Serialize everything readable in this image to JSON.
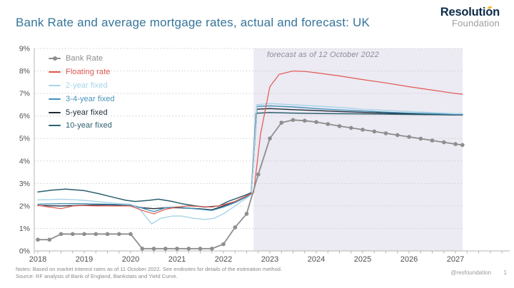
{
  "header": {
    "title": "Bank Rate and average mortgage rates, actual and forecast: UK"
  },
  "logo": {
    "line1": "Resolution",
    "line2": "Foundation"
  },
  "footer": {
    "notes": "Notes: Based on market interest rates as of 11 October 2022. See endnotes for details of the estimation method.",
    "source": "Source: RF analysis of Bank of England, Bankstats and Yield Curve.",
    "handle": "@resfoundation",
    "page": "1"
  },
  "colors": {
    "title": "#35759a",
    "forecast_band": "#eceaf3",
    "gridline": "#cdcdcd",
    "axis": "#b5b5b5",
    "logo_navy": "#0d2b49",
    "logo_yellow": "#f2b933"
  },
  "chart_data": {
    "type": "line",
    "title": "Bank Rate and average mortgage rates, actual and forecast: UK",
    "xlabel": "",
    "ylabel": "",
    "ylim": [
      0,
      9
    ],
    "y_tick_labels": [
      "0%",
      "1%",
      "2%",
      "3%",
      "4%",
      "5%",
      "6%",
      "7%",
      "8%",
      "9%"
    ],
    "x_ticks": [
      2018,
      2019,
      2020,
      2021,
      2022,
      2023,
      2024,
      2025,
      2026,
      2027
    ],
    "x_tick_labels": [
      "2018",
      "2019",
      "2020",
      "2021",
      "2022",
      "2023",
      "2024",
      "2025",
      "2026",
      "2027"
    ],
    "grid": "horizontal-dotted",
    "legend_position": "top-left",
    "forecast_band": {
      "start": 2022.65,
      "end": 2027.22,
      "label": "forecast as of 12 October 2022"
    },
    "series": [
      {
        "name": "Bank Rate",
        "color": "#8e8e8e",
        "marker": true,
        "width": 1.8,
        "x": [
          2018.0,
          2018.25,
          2018.5,
          2018.75,
          2019.0,
          2019.25,
          2019.5,
          2019.75,
          2020.0,
          2020.25,
          2020.5,
          2020.75,
          2021.0,
          2021.25,
          2021.5,
          2021.75,
          2022.0,
          2022.25,
          2022.5,
          2022.75,
          2023.0,
          2023.25,
          2023.5,
          2023.75,
          2024.0,
          2024.25,
          2024.5,
          2024.75,
          2025.0,
          2025.25,
          2025.5,
          2025.75,
          2026.0,
          2026.25,
          2026.5,
          2026.75,
          2027.0,
          2027.15
        ],
        "y": [
          0.5,
          0.5,
          0.75,
          0.75,
          0.75,
          0.75,
          0.75,
          0.75,
          0.75,
          0.1,
          0.1,
          0.1,
          0.1,
          0.1,
          0.1,
          0.1,
          0.3,
          1.05,
          1.65,
          3.4,
          5.0,
          5.7,
          5.82,
          5.79,
          5.73,
          5.64,
          5.55,
          5.47,
          5.39,
          5.31,
          5.23,
          5.15,
          5.07,
          4.99,
          4.91,
          4.83,
          4.75,
          4.71
        ]
      },
      {
        "name": "Floating rate",
        "color": "#e05850",
        "marker": false,
        "width": 1.2,
        "x": [
          2018.0,
          2018.25,
          2018.5,
          2018.75,
          2019.0,
          2019.25,
          2019.5,
          2019.75,
          2020.0,
          2020.25,
          2020.5,
          2020.75,
          2021.0,
          2021.25,
          2021.5,
          2021.75,
          2022.0,
          2022.25,
          2022.5,
          2022.65,
          2022.8,
          2023.0,
          2023.2,
          2023.5,
          2023.75,
          2024.0,
          2024.5,
          2025.0,
          2025.5,
          2026.0,
          2026.5,
          2027.0,
          2027.15
        ],
        "y": [
          2.03,
          1.95,
          1.88,
          2.0,
          2.02,
          2.0,
          2.0,
          2.0,
          2.0,
          1.8,
          1.65,
          1.85,
          1.95,
          2.0,
          1.97,
          1.95,
          2.05,
          2.2,
          2.45,
          2.6,
          5.2,
          7.3,
          7.85,
          8.0,
          7.98,
          7.92,
          7.78,
          7.62,
          7.47,
          7.3,
          7.15,
          7.0,
          6.97
        ]
      },
      {
        "name": "2-year fixed",
        "color": "#a6d4e8",
        "marker": false,
        "width": 1.4,
        "x": [
          2018.0,
          2018.25,
          2018.5,
          2018.75,
          2019.0,
          2019.25,
          2019.5,
          2019.75,
          2020.0,
          2020.2,
          2020.45,
          2020.65,
          2020.9,
          2021.1,
          2021.35,
          2021.6,
          2021.8,
          2022.0,
          2022.25,
          2022.5,
          2022.6,
          2022.72,
          2023.0,
          2023.5,
          2024.0,
          2024.5,
          2025.0,
          2025.5,
          2026.0,
          2026.5,
          2027.0,
          2027.15
        ],
        "y": [
          2.27,
          2.28,
          2.3,
          2.28,
          2.25,
          2.2,
          2.15,
          2.1,
          2.08,
          1.85,
          1.2,
          1.45,
          1.55,
          1.55,
          1.45,
          1.4,
          1.45,
          1.65,
          2.0,
          2.35,
          2.5,
          6.5,
          6.55,
          6.5,
          6.44,
          6.38,
          6.3,
          6.25,
          6.2,
          6.15,
          6.1,
          6.1
        ]
      },
      {
        "name": "3-4-year fixed",
        "color": "#4692ba",
        "marker": false,
        "width": 1.4,
        "x": [
          2018.0,
          2018.5,
          2019.0,
          2019.5,
          2020.0,
          2020.25,
          2020.5,
          2020.75,
          2021.0,
          2021.25,
          2021.5,
          2021.75,
          2022.0,
          2022.25,
          2022.5,
          2022.6,
          2022.72,
          2023.0,
          2023.5,
          2024.0,
          2024.5,
          2025.0,
          2025.5,
          2026.0,
          2026.5,
          2027.0,
          2027.15
        ],
        "y": [
          2.08,
          2.1,
          2.1,
          2.08,
          2.05,
          1.9,
          1.75,
          1.92,
          1.95,
          1.9,
          1.85,
          1.8,
          1.95,
          2.15,
          2.4,
          2.5,
          6.42,
          6.45,
          6.4,
          6.33,
          6.27,
          6.22,
          6.17,
          6.13,
          6.1,
          6.07,
          6.07
        ]
      },
      {
        "name": "5-year fixed",
        "color": "#202c38",
        "marker": false,
        "width": 1.4,
        "x": [
          2018.0,
          2018.5,
          2019.0,
          2019.5,
          2020.0,
          2020.25,
          2020.5,
          2020.75,
          2021.0,
          2021.25,
          2021.5,
          2021.75,
          2022.0,
          2022.25,
          2022.5,
          2022.6,
          2022.72,
          2023.0,
          2023.5,
          2024.0,
          2024.5,
          2025.0,
          2025.5,
          2026.0,
          2026.5,
          2027.0,
          2027.15
        ],
        "y": [
          2.02,
          2.0,
          2.03,
          2.05,
          2.0,
          1.92,
          1.88,
          1.92,
          1.92,
          1.9,
          1.87,
          1.83,
          2.0,
          2.2,
          2.45,
          2.55,
          6.3,
          6.33,
          6.28,
          6.24,
          6.2,
          6.16,
          6.13,
          6.1,
          6.08,
          6.05,
          6.05
        ]
      },
      {
        "name": "10-year fixed",
        "color": "#2d5f6e",
        "marker": false,
        "width": 1.5,
        "x": [
          2018.0,
          2018.3,
          2018.6,
          2019.0,
          2019.3,
          2019.6,
          2019.9,
          2020.1,
          2020.4,
          2020.6,
          2020.9,
          2021.1,
          2021.4,
          2021.6,
          2021.9,
          2022.1,
          2022.3,
          2022.5,
          2022.6,
          2022.7,
          2023.0,
          2023.5,
          2024.0,
          2025.0,
          2026.0,
          2027.0,
          2027.15
        ],
        "y": [
          2.62,
          2.7,
          2.75,
          2.68,
          2.55,
          2.4,
          2.25,
          2.2,
          2.25,
          2.3,
          2.2,
          2.1,
          2.0,
          1.95,
          2.0,
          2.2,
          2.35,
          2.5,
          2.6,
          6.12,
          6.15,
          6.13,
          6.11,
          6.09,
          6.07,
          6.05,
          6.05
        ]
      }
    ]
  }
}
